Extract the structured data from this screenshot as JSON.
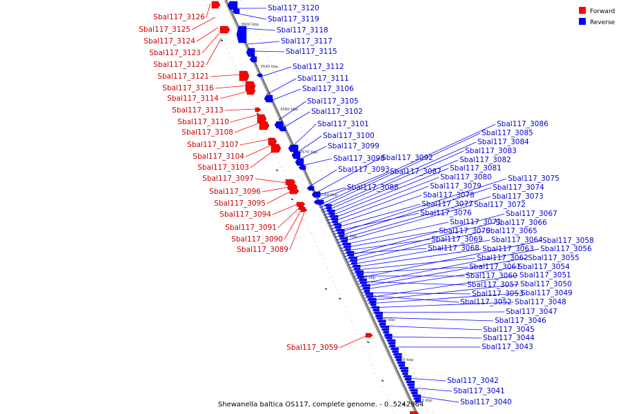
{
  "caption": "Shewanella baltica OS117, complete genome. - 0..5242964",
  "legend": [
    {
      "label": "Forward",
      "color": "#ff0000"
    },
    {
      "label": "Reverse",
      "color": "#0000ff"
    }
  ],
  "ticks": [
    "3600 kbp",
    "3590 kbp",
    "3580 kbp",
    "3570 kbp",
    "3560 kbp",
    "3550 kbp",
    "3540 kbp",
    "3530 kbp",
    "3520 kbp",
    "3510 kbp"
  ],
  "forward_genes": [
    "Sbal117_3126",
    "Sbal117_3125",
    "Sbal117_3124",
    "Sbal117_3123",
    "Sbal117_3122",
    "Sbal117_3121",
    "Sbal117_3116",
    "Sbal117_3114",
    "Sbal117_3113",
    "Sbal117_3110",
    "Sbal117_3108",
    "Sbal117_3107",
    "Sbal117_3104",
    "Sbal117_3103",
    "Sbal117_3097",
    "Sbal117_3096",
    "Sbal117_3095",
    "Sbal117_3094",
    "Sbal117_3091",
    "Sbal117_3090",
    "Sbal117_3089",
    "Sbal117_3059"
  ],
  "reverse_genes": [
    "Sbal117_3120",
    "Sbal117_3119",
    "Sbal117_3118",
    "Sbal117_3117",
    "Sbal117_3115",
    "Sbal117_3112",
    "Sbal117_3111",
    "Sbal117_3106",
    "Sbal117_3105",
    "Sbal117_3102",
    "Sbal117_3101",
    "Sbal117_3100",
    "Sbal117_3099",
    "Sbal117_3098",
    "Sbal117_3093",
    "Sbal117_3092",
    "Sbal117_3088",
    "Sbal117_3087",
    "Sbal117_3086",
    "Sbal117_3085",
    "Sbal117_3084",
    "Sbal117_3083",
    "Sbal117_3082",
    "Sbal117_3081",
    "Sbal117_3080",
    "Sbal117_3079",
    "Sbal117_3078",
    "Sbal117_3077",
    "Sbal117_3076",
    "Sbal117_3075",
    "Sbal117_3074",
    "Sbal117_3073",
    "Sbal117_3072",
    "Sbal117_3071",
    "Sbal117_3070",
    "Sbal117_3069",
    "Sbal117_3068",
    "Sbal117_3067",
    "Sbal117_3066",
    "Sbal117_3065",
    "Sbal117_3064",
    "Sbal117_3063",
    "Sbal117_3062",
    "Sbal117_3061",
    "Sbal117_3060",
    "Sbal117_3058",
    "Sbal117_3057",
    "Sbal117_3056",
    "Sbal117_3055",
    "Sbal117_3054",
    "Sbal117_3053",
    "Sbal117_3052",
    "Sbal117_3051",
    "Sbal117_3050",
    "Sbal117_3049",
    "Sbal117_3048",
    "Sbal117_3047",
    "Sbal117_3046",
    "Sbal117_3045",
    "Sbal117_3044",
    "Sbal117_3043",
    "Sbal117_3042",
    "Sbal117_3041",
    "Sbal117_3040"
  ]
}
